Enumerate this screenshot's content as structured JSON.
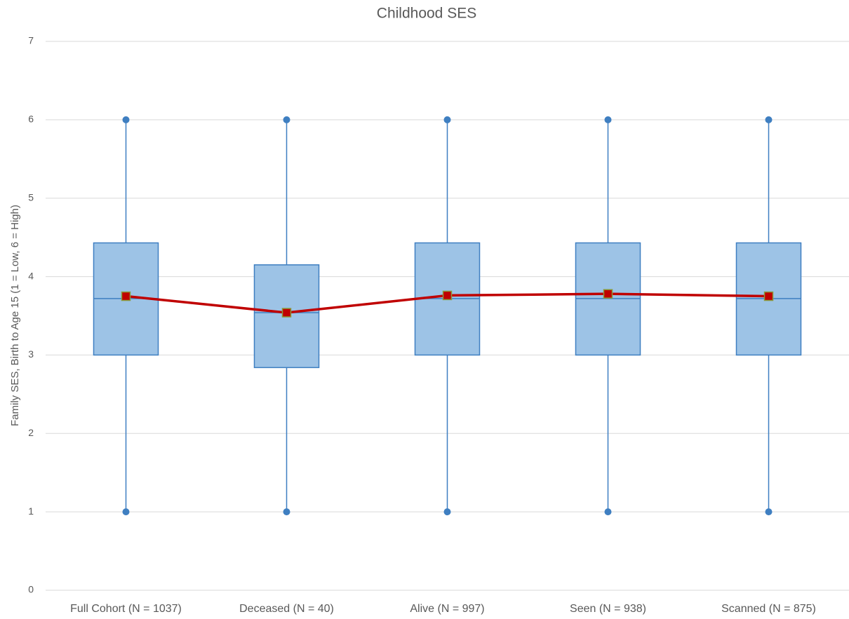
{
  "chart_data": {
    "type": "box",
    "title": "Childhood SES",
    "y_label": "Family SES, Birth to Age 15 (1 = Low, 6 = High)",
    "categories": [
      "Full Cohort (N = 1037)",
      "Deceased (N = 40)",
      "Alive (N = 997)",
      "Seen (N = 938)",
      "Scanned (N = 875)"
    ],
    "min": [
      1,
      1,
      1,
      1,
      1
    ],
    "q1": [
      3,
      2.84,
      3,
      3,
      3
    ],
    "median": [
      3.72,
      3.54,
      3.72,
      3.72,
      3.72
    ],
    "q3": [
      4.43,
      4.15,
      4.43,
      4.43,
      4.43
    ],
    "max": [
      6,
      6,
      6,
      6,
      6
    ],
    "mean": [
      3.75,
      3.54,
      3.76,
      3.78,
      3.75
    ],
    "box_color": "#9dc3e6",
    "edge_color": "#3f7fc1",
    "mean_color": "#c00000",
    "ylim": [
      0,
      7
    ],
    "yticks": [
      0,
      1,
      2,
      3,
      4,
      5,
      6,
      7
    ],
    "grid": true
  }
}
